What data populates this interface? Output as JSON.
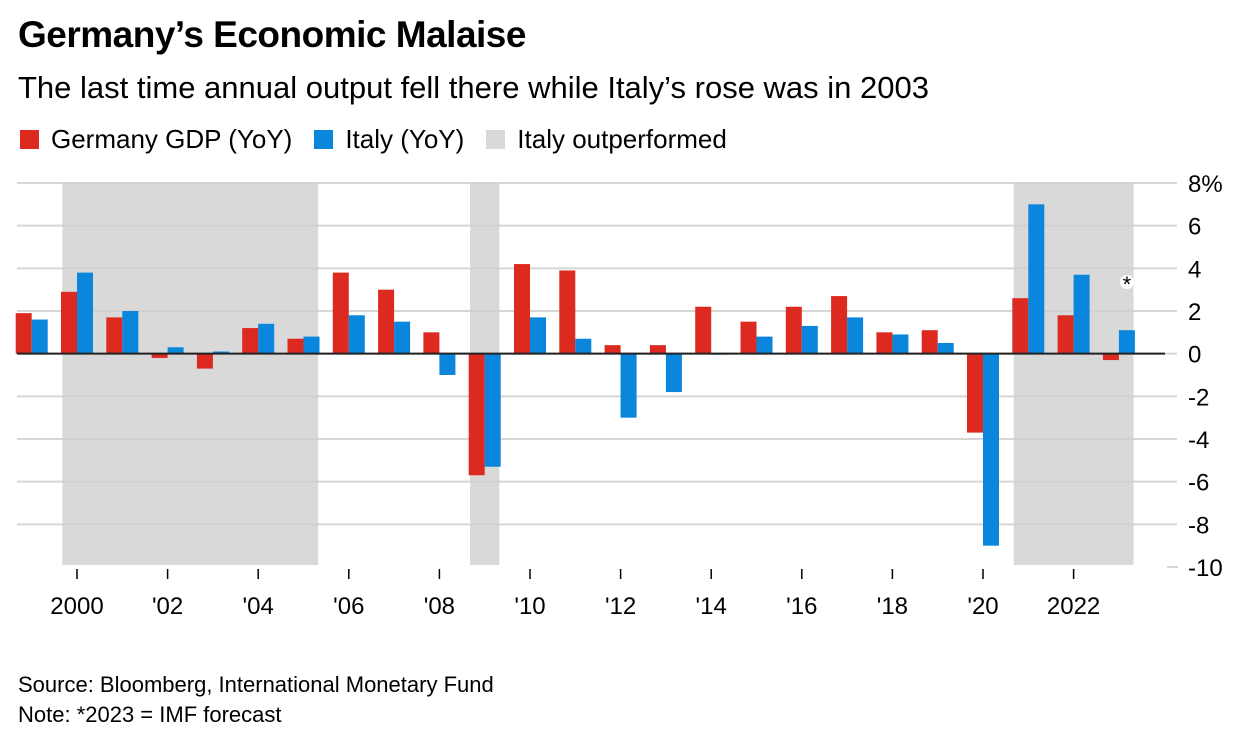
{
  "header": {
    "title": "Germany’s Economic Malaise",
    "subtitle": "The last time annual output fell there while Italy’s rose was in 2003"
  },
  "legend": [
    {
      "label": "Germany GDP (YoY)",
      "color": "#dc2a21"
    },
    {
      "label": "Italy (YoY)",
      "color": "#0a86dc"
    },
    {
      "label": "Italy outperformed",
      "color": "#d9d9d9"
    }
  ],
  "footer": {
    "source": "Source: Bloomberg, International Monetary Fund",
    "note": "Note: *2023 = IMF forecast"
  },
  "chart_data": {
    "type": "bar",
    "title": "Germany’s Economic Malaise",
    "subtitle": "The last time annual output fell there while Italy’s rose was in 2003",
    "xlabel": "",
    "ylabel": "",
    "ylim": [
      -10,
      8
    ],
    "y_ticks": [
      8,
      6,
      4,
      2,
      0,
      -2,
      -4,
      -6,
      -8,
      -10
    ],
    "y_tick_labels": [
      "8%",
      "6",
      "4",
      "2",
      "0",
      "-2",
      "-4",
      "-6",
      "-8",
      "-10"
    ],
    "y_axis_position": "right",
    "grid": true,
    "legend_position": "top-left",
    "categories": [
      1999,
      2000,
      2001,
      2002,
      2003,
      2004,
      2005,
      2006,
      2007,
      2008,
      2009,
      2010,
      2011,
      2012,
      2013,
      2014,
      2015,
      2016,
      2017,
      2018,
      2019,
      2020,
      2021,
      2022,
      2023
    ],
    "x_ticks": [
      2000,
      2002,
      2004,
      2006,
      2008,
      2010,
      2012,
      2014,
      2016,
      2018,
      2020,
      2022
    ],
    "x_tick_labels": [
      "2000",
      "'02",
      "'04",
      "'06",
      "'08",
      "'10",
      "'12",
      "'14",
      "'16",
      "'18",
      "'20",
      "2022"
    ],
    "series": [
      {
        "name": "Germany GDP (YoY)",
        "color": "#dc2a21",
        "values": [
          1.9,
          2.9,
          1.7,
          -0.2,
          -0.7,
          1.2,
          0.7,
          3.8,
          3.0,
          1.0,
          -5.7,
          4.2,
          3.9,
          0.4,
          0.4,
          2.2,
          1.5,
          2.2,
          2.7,
          1.0,
          1.1,
          -3.7,
          2.6,
          1.8,
          -0.3
        ]
      },
      {
        "name": "Italy (YoY)",
        "color": "#0a86dc",
        "values": [
          1.6,
          3.8,
          2.0,
          0.3,
          0.1,
          1.4,
          0.8,
          1.8,
          1.5,
          -1.0,
          -5.3,
          1.7,
          0.7,
          -3.0,
          -1.8,
          0.0,
          0.8,
          1.3,
          1.7,
          0.9,
          0.5,
          -9.0,
          7.0,
          3.7,
          1.1
        ]
      }
    ],
    "shaded_ranges": [
      {
        "label": "Italy outperformed",
        "from": 2000,
        "to": 2005
      },
      {
        "label": "Italy outperformed",
        "from": 2009,
        "to": 2009
      },
      {
        "label": "Italy outperformed",
        "from": 2021,
        "to": 2023
      }
    ],
    "annotations": [
      {
        "category": 2023,
        "text": "*"
      }
    ]
  }
}
